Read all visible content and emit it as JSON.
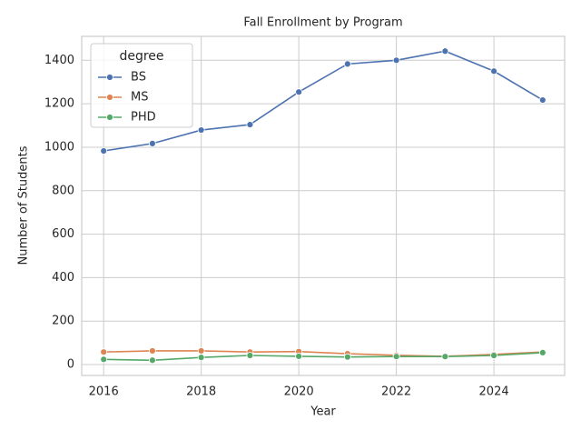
{
  "chart_data": {
    "type": "line",
    "title": "Fall Enrollment by Program",
    "x_label": "Year",
    "y_label": "Number of Students",
    "x": [
      2016,
      2017,
      2018,
      2019,
      2020,
      2021,
      2022,
      2023,
      2024,
      2025
    ],
    "series": [
      {
        "name": "BS",
        "color": "#4c72b0",
        "values": [
          983,
          1017,
          1079,
          1104,
          1254,
          1383,
          1400,
          1442,
          1350,
          1217
        ]
      },
      {
        "name": "MS",
        "color": "#dd8452",
        "values": [
          58,
          63,
          63,
          58,
          60,
          50,
          43,
          38,
          47,
          58
        ]
      },
      {
        "name": "PHD",
        "color": "#55a868",
        "values": [
          24,
          20,
          33,
          42,
          38,
          35,
          37,
          37,
          42,
          55
        ]
      }
    ],
    "legend_title": "degree",
    "legend": "upper left",
    "xlim": [
      2015.55,
      2025.45
    ],
    "xticks": [
      2016,
      2018,
      2020,
      2022,
      2024
    ],
    "ylim": [
      -50,
      1510
    ],
    "yticks": [
      0,
      200,
      400,
      600,
      800,
      1000,
      1200,
      1400
    ],
    "grid": true
  }
}
